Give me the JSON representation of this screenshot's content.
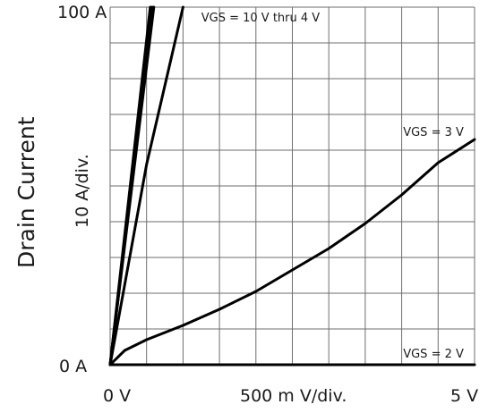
{
  "chart_data": {
    "type": "line",
    "title": "",
    "ylabel": "Drain Current",
    "ylabel_unit": "10  A/div.",
    "xlabel_unit": "500 m V/div.",
    "tick_labels": {
      "y_top": "100  A",
      "y_bottom": "0  A",
      "x_left": "0  V",
      "x_right": "5  V"
    },
    "xlim": [
      0,
      5
    ],
    "ylim": [
      0,
      100
    ],
    "x_divisions": 10,
    "y_divisions": 10,
    "grid": true,
    "series": [
      {
        "name": "VGS = 10 V thru 4 V",
        "x": [
          0,
          0.55
        ],
        "y": [
          0,
          100
        ]
      },
      {
        "name": "VGS = 10 V thru 4 V",
        "x": [
          0,
          0.57
        ],
        "y": [
          0,
          100
        ]
      },
      {
        "name": "VGS = 10 V thru 4 V",
        "x": [
          0,
          0.59
        ],
        "y": [
          0,
          100
        ]
      },
      {
        "name": "VGS = 10 V thru 4 V",
        "x": [
          0,
          0.6
        ],
        "y": [
          0,
          100
        ]
      },
      {
        "name": "VGS = 10 V thru 4 V",
        "x": [
          0,
          0.5,
          1.0
        ],
        "y": [
          0,
          56,
          100
        ]
      },
      {
        "name": "VGS = 3 V",
        "x": [
          0,
          0.2,
          0.5,
          1.0,
          1.5,
          2.0,
          2.5,
          3.0,
          3.5,
          4.0,
          4.5,
          5.0
        ],
        "y": [
          0,
          4,
          7,
          11,
          15.5,
          20.5,
          26.5,
          32.5,
          39.5,
          47.5,
          56.5,
          63
        ]
      },
      {
        "name": "VGS = 2 V",
        "x": [
          0,
          5
        ],
        "y": [
          0,
          0
        ]
      }
    ],
    "annotations": [
      {
        "text": "VGS = 10 V thru 4 V",
        "x": 1.25,
        "y": 96
      },
      {
        "text": "VGS = 3 V",
        "x": 4.02,
        "y": 64
      },
      {
        "text": "VGS = 2 V",
        "x": 4.02,
        "y": 2
      }
    ]
  }
}
